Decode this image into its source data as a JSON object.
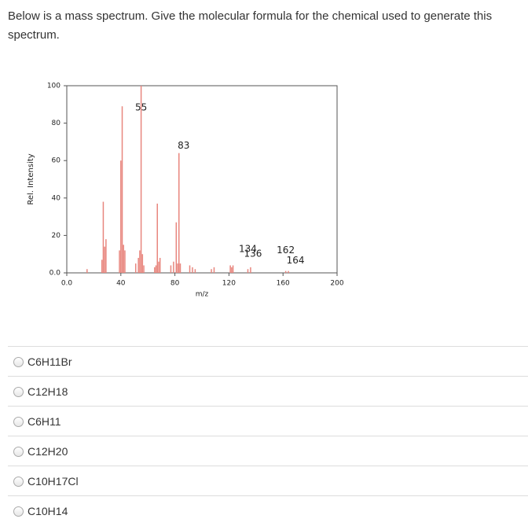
{
  "question": "Below is a mass spectrum.  Give the molecular formula for the chemical used to generate this spectrum.",
  "chart_data": {
    "type": "bar",
    "x_label": "m/z",
    "y_label": "Rel. Intensity",
    "color": "#e8867e",
    "x": [
      15,
      26,
      27,
      28,
      29,
      39,
      40,
      41,
      42,
      43,
      51,
      53,
      54,
      55,
      56,
      57,
      65,
      66,
      67,
      68,
      69,
      77,
      79,
      81,
      82,
      83,
      84,
      91,
      93,
      95,
      107,
      109,
      121,
      122,
      123,
      134,
      136,
      162,
      164
    ],
    "values": [
      2,
      7,
      38,
      14,
      18,
      12,
      60,
      89,
      15,
      12,
      5,
      8,
      12,
      100,
      10,
      4,
      3,
      4,
      37,
      6,
      8,
      4,
      6,
      27,
      5,
      64,
      5,
      4,
      3,
      2,
      2,
      3,
      4,
      3,
      4,
      2,
      3,
      1,
      1
    ],
    "annotations": [
      "55",
      "83",
      "134",
      "136",
      "162",
      "164"
    ],
    "xlim": [
      0,
      200
    ],
    "ylim": [
      0,
      100
    ],
    "xticks": [
      {
        "value": 0,
        "label": "0.0"
      },
      40,
      80,
      120,
      160,
      200
    ],
    "yticks": [
      {
        "value": 0,
        "label": "0.0"
      },
      20,
      40,
      60,
      80,
      100
    ]
  },
  "options": [
    "C6H11Br",
    "C12H18",
    "C6H11",
    "C12H20",
    "C10H17Cl",
    "C10H14"
  ]
}
